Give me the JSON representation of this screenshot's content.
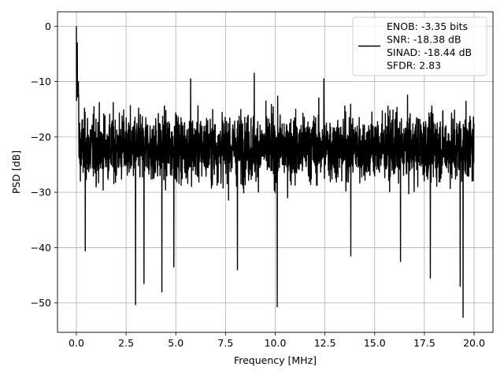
{
  "chart_data": {
    "type": "line",
    "xlabel": "Frequency [MHz]",
    "ylabel": "PSD [dB]",
    "xlim": [
      -0.95,
      20.95
    ],
    "ylim": [
      -55.3,
      2.6
    ],
    "xticks": [
      0.0,
      2.5,
      5.0,
      7.5,
      10.0,
      12.5,
      15.0,
      17.5,
      20.0
    ],
    "xtick_labels": [
      "0.0",
      "2.5",
      "5.0",
      "7.5",
      "10.0",
      "12.5",
      "15.0",
      "17.5",
      "20.0"
    ],
    "yticks": [
      0,
      -10,
      -20,
      -30,
      -40,
      -50
    ],
    "ytick_labels": [
      "0",
      "−10",
      "−20",
      "−30",
      "−40",
      "−50"
    ],
    "grid": true,
    "legend_position": "top-right",
    "legend": {
      "line_color": "#000000",
      "lines": [
        "ENOB: -3.35 bits",
        "SNR: -18.38 dB",
        "SINAD: -18.44 dB",
        "SFDR: 2.83"
      ]
    },
    "series": [
      {
        "color": "#000000",
        "noise_floor_approx_db": -22,
        "x_range": [
          0.0,
          20.0
        ],
        "peaks": [
          {
            "x": 0.0,
            "y": 0.0
          },
          {
            "x": 0.05,
            "y": -3.0
          },
          {
            "x": 0.1,
            "y": -10.0
          },
          {
            "x": 8.95,
            "y": -8.5
          },
          {
            "x": 5.75,
            "y": -9.5
          },
          {
            "x": 12.45,
            "y": -9.5
          }
        ],
        "dips": [
          {
            "x": 2.98,
            "y": -50.3
          },
          {
            "x": 10.1,
            "y": -50.7
          },
          {
            "x": 19.45,
            "y": -52.6
          },
          {
            "x": 19.3,
            "y": -47.0
          },
          {
            "x": 3.4,
            "y": -46.5
          },
          {
            "x": 4.3,
            "y": -48.0
          },
          {
            "x": 4.9,
            "y": -43.5
          },
          {
            "x": 8.1,
            "y": -44.0
          },
          {
            "x": 17.8,
            "y": -45.5
          },
          {
            "x": 0.45,
            "y": -40.6
          },
          {
            "x": 16.3,
            "y": -42.5
          },
          {
            "x": 13.8,
            "y": -41.5
          }
        ]
      }
    ]
  }
}
